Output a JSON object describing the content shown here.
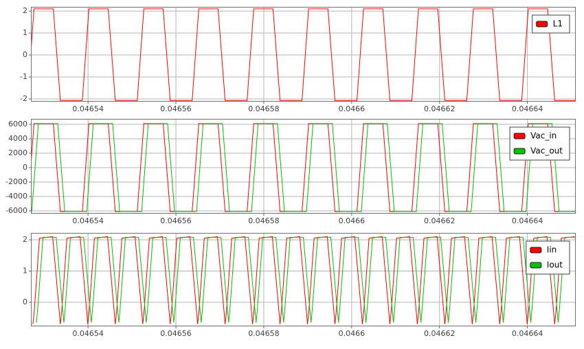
{
  "chart_data": [
    {
      "type": "line",
      "xlim": [
        0.046527,
        0.046651
      ],
      "ylim": [
        -2.125,
        2.19
      ],
      "xticks": [
        0.04654,
        0.04656,
        0.04658,
        0.0466,
        0.04662,
        0.04664
      ],
      "yticks": [
        2,
        1,
        0,
        -1,
        -2
      ],
      "grid": true,
      "legend": "upper right",
      "series": [
        {
          "name": "L1",
          "color": "#ff0000",
          "x": [
            0.0465262,
            0.0465277,
            0.0465321,
            0.0465337,
            0.0465387,
            0.0465402,
            0.0465446,
            0.0465462,
            0.0465512,
            0.0465527,
            0.0465571,
            0.0465587,
            0.0465637,
            0.0465652,
            0.0465696,
            0.0465712,
            0.0465762,
            0.0465777,
            0.0465821,
            0.0465837,
            0.0465887,
            0.0465902,
            0.0465946,
            0.0465962,
            0.0466012,
            0.0466027,
            0.0466071,
            0.0466087,
            0.0466137,
            0.0466152,
            0.0466196,
            0.0466212,
            0.0466262,
            0.0466277,
            0.0466321,
            0.0466337,
            0.0466387,
            0.0466402,
            0.0466446,
            0.0466462,
            0.046651
          ],
          "values": [
            -2.07,
            2.1,
            2.1,
            -2.07,
            -2.07,
            2.1,
            2.1,
            -2.07,
            -2.07,
            2.1,
            2.1,
            -2.07,
            -2.07,
            2.1,
            2.1,
            -2.07,
            -2.07,
            2.1,
            2.1,
            -2.07,
            -2.07,
            2.1,
            2.1,
            -2.07,
            -2.07,
            2.1,
            2.1,
            -2.07,
            -2.07,
            2.1,
            2.1,
            -2.07,
            -2.07,
            2.1,
            2.1,
            -2.07,
            -2.07,
            2.1,
            2.1,
            -2.07,
            -2.07
          ]
        }
      ]
    },
    {
      "type": "line",
      "xlim": [
        0.046527,
        0.046651
      ],
      "ylim": [
        -6380,
        6760
      ],
      "xticks": [
        0.04654,
        0.04656,
        0.04658,
        0.0466,
        0.04662,
        0.04664
      ],
      "yticks": [
        6000,
        4000,
        2000,
        0,
        -2000,
        -4000,
        -6000
      ],
      "grid": true,
      "legend": "upper right",
      "series": [
        {
          "name": "Vac_in",
          "color": "#ff0000",
          "x": [
            0.0465262,
            0.0465277,
            0.0465321,
            0.0465337,
            0.0465387,
            0.0465402,
            0.0465446,
            0.0465462,
            0.0465512,
            0.0465527,
            0.0465571,
            0.0465587,
            0.0465637,
            0.0465652,
            0.0465696,
            0.0465712,
            0.0465762,
            0.0465777,
            0.0465821,
            0.0465837,
            0.0465887,
            0.0465902,
            0.0465946,
            0.0465962,
            0.0466012,
            0.0466027,
            0.0466071,
            0.0466087,
            0.0466137,
            0.0466152,
            0.0466196,
            0.0466212,
            0.0466262,
            0.0466277,
            0.0466321,
            0.0466337,
            0.0466387,
            0.0466402,
            0.0466446,
            0.0466462,
            0.046651
          ],
          "values": [
            -6100,
            6100,
            6100,
            -6100,
            -6100,
            6100,
            6100,
            -6100,
            -6100,
            6100,
            6100,
            -6100,
            -6100,
            6100,
            6100,
            -6100,
            -6100,
            6100,
            6100,
            -6100,
            -6100,
            6100,
            6100,
            -6100,
            -6100,
            6100,
            6100,
            -6100,
            -6100,
            6100,
            6100,
            -6100,
            -6100,
            6100,
            6100,
            -6100,
            -6100,
            6100,
            6100,
            -6100,
            -6100
          ]
        },
        {
          "name": "Vac_out",
          "color": "#00c000",
          "x": [
            0.0465272,
            0.0465287,
            0.0465331,
            0.0465347,
            0.0465397,
            0.0465412,
            0.0465456,
            0.0465472,
            0.0465522,
            0.0465537,
            0.0465581,
            0.0465597,
            0.0465647,
            0.0465662,
            0.0465706,
            0.0465722,
            0.0465772,
            0.0465787,
            0.0465831,
            0.0465847,
            0.0465897,
            0.0465912,
            0.0465956,
            0.0465972,
            0.0466022,
            0.0466037,
            0.0466081,
            0.0466097,
            0.0466147,
            0.0466162,
            0.0466206,
            0.0466222,
            0.0466272,
            0.0466287,
            0.0466331,
            0.0466347,
            0.0466397,
            0.0466412,
            0.0466456,
            0.0466472,
            0.046651
          ],
          "values": [
            -6100,
            6100,
            6100,
            -6100,
            -6100,
            6100,
            6100,
            -6100,
            -6100,
            6100,
            6100,
            -6100,
            -6100,
            6100,
            6100,
            -6100,
            -6100,
            6100,
            6100,
            -6100,
            -6100,
            6100,
            6100,
            -6100,
            -6100,
            6100,
            6100,
            -6100,
            -6100,
            6100,
            6100,
            -6100,
            -6100,
            6100,
            6100,
            -6100,
            -6100,
            6100,
            6100,
            -6100,
            -6100
          ]
        }
      ]
    },
    {
      "type": "line",
      "xlim": [
        0.046527,
        0.046651
      ],
      "ylim": [
        -0.77,
        2.22
      ],
      "xticks": [
        0.04654,
        0.04656,
        0.04658,
        0.0466,
        0.04662,
        0.04664
      ],
      "yticks": [
        2,
        1,
        0
      ],
      "grid": true,
      "legend": "upper right",
      "series": [
        {
          "name": "Iin",
          "color": "#ff0000",
          "x": [
            0.04652745,
            0.04652775,
            0.04652895,
            0.04653195,
            0.0465337,
            0.046534,
            0.0465352,
            0.0465382,
            0.04653995,
            0.04654025,
            0.04654145,
            0.04654445,
            0.0465462,
            0.0465465,
            0.0465477,
            0.0465507,
            0.04655245,
            0.04655275,
            0.04655395,
            0.04655695,
            0.0465587,
            0.046559,
            0.0465602,
            0.0465632,
            0.04656495,
            0.04656525,
            0.04656645,
            0.04656945,
            0.0465712,
            0.0465715,
            0.0465727,
            0.0465757,
            0.04657745,
            0.04657775,
            0.04657895,
            0.04658195,
            0.0465837,
            0.046584,
            0.0465852,
            0.0465882,
            0.04658995,
            0.04659025,
            0.04659145,
            0.04659445,
            0.0465962,
            0.0465965,
            0.0465977,
            0.0466007,
            0.04660245,
            0.04660275,
            0.04660395,
            0.04660695,
            0.0466087,
            0.046609,
            0.0466102,
            0.0466132,
            0.04661495,
            0.04661525,
            0.04661645,
            0.04661945,
            0.0466212,
            0.0466215,
            0.0466227,
            0.0466257,
            0.04662745,
            0.04662775,
            0.04662895,
            0.04663195,
            0.0466337,
            0.046634,
            0.0466352,
            0.0466382,
            0.04663995,
            0.04664025,
            0.04664145,
            0.04664445,
            0.0466462,
            0.0466465,
            0.0466477,
            0.0466507
          ],
          "values": [
            -0.7,
            -0.3,
            2.05,
            2.1,
            -0.7,
            -0.3,
            2.05,
            2.1,
            -0.7,
            -0.3,
            2.05,
            2.1,
            -0.7,
            -0.3,
            2.05,
            2.1,
            -0.7,
            -0.3,
            2.05,
            2.1,
            -0.7,
            -0.3,
            2.05,
            2.1,
            -0.7,
            -0.3,
            2.05,
            2.1,
            -0.7,
            -0.3,
            2.05,
            2.1,
            -0.7,
            -0.3,
            2.05,
            2.1,
            -0.7,
            -0.3,
            2.05,
            2.1,
            -0.7,
            -0.3,
            2.05,
            2.1,
            -0.7,
            -0.3,
            2.05,
            2.1,
            -0.7,
            -0.3,
            2.05,
            2.1,
            -0.7,
            -0.3,
            2.05,
            2.1,
            -0.7,
            -0.3,
            2.05,
            2.1,
            -0.7,
            -0.3,
            2.05,
            2.1,
            -0.7,
            -0.3,
            2.05,
            2.1,
            -0.7,
            -0.3,
            2.05,
            2.1,
            -0.7,
            -0.3,
            2.05,
            2.1,
            -0.7,
            -0.3,
            2.05,
            2.1
          ]
        },
        {
          "name": "Iout",
          "color": "#00c000",
          "x": [
            0.04652825,
            0.04652855,
            0.04652975,
            0.04653275,
            0.0465345,
            0.0465348,
            0.046536,
            0.046539,
            0.04654075,
            0.04654105,
            0.04654225,
            0.04654525,
            0.046547,
            0.0465473,
            0.0465485,
            0.0465515,
            0.04655325,
            0.04655355,
            0.04655475,
            0.04655775,
            0.0465595,
            0.0465598,
            0.046561,
            0.046564,
            0.04656575,
            0.04656605,
            0.04656725,
            0.04657025,
            0.046572,
            0.0465723,
            0.0465735,
            0.0465765,
            0.04657825,
            0.04657855,
            0.04657975,
            0.04658275,
            0.0465845,
            0.0465848,
            0.046586,
            0.046589,
            0.04659075,
            0.04659105,
            0.04659225,
            0.04659525,
            0.046597,
            0.0465973,
            0.0465985,
            0.0466015,
            0.04660325,
            0.04660355,
            0.04660475,
            0.04660775,
            0.0466095,
            0.0466098,
            0.046611,
            0.046614,
            0.04661575,
            0.04661605,
            0.04661725,
            0.04662025,
            0.046622,
            0.0466223,
            0.0466235,
            0.0466265,
            0.04662825,
            0.04662855,
            0.04662975,
            0.04663275,
            0.0466345,
            0.0466348,
            0.046636,
            0.046639,
            0.04664075,
            0.04664105,
            0.04664225,
            0.04664525,
            0.046647,
            0.0466473,
            0.0466485,
            0.0466515
          ],
          "values": [
            -0.65,
            -0.2,
            2.08,
            2.08,
            -0.65,
            -0.2,
            2.08,
            2.08,
            -0.65,
            -0.2,
            2.08,
            2.08,
            -0.65,
            -0.2,
            2.08,
            2.08,
            -0.65,
            -0.2,
            2.08,
            2.08,
            -0.65,
            -0.2,
            2.08,
            2.08,
            -0.65,
            -0.2,
            2.08,
            2.08,
            -0.65,
            -0.2,
            2.08,
            2.08,
            -0.65,
            -0.2,
            2.08,
            2.08,
            -0.65,
            -0.2,
            2.08,
            2.08,
            -0.65,
            -0.2,
            2.08,
            2.08,
            -0.65,
            -0.2,
            2.08,
            2.08,
            -0.65,
            -0.2,
            2.08,
            2.08,
            -0.65,
            -0.2,
            2.08,
            2.08,
            -0.65,
            -0.2,
            2.08,
            2.08,
            -0.65,
            -0.2,
            2.08,
            2.08,
            -0.65,
            -0.2,
            2.08,
            2.08,
            -0.65,
            -0.2,
            2.08,
            2.08,
            -0.65,
            -0.2,
            2.08,
            2.08,
            -0.65,
            -0.2,
            2.08,
            2.08
          ]
        }
      ]
    }
  ]
}
